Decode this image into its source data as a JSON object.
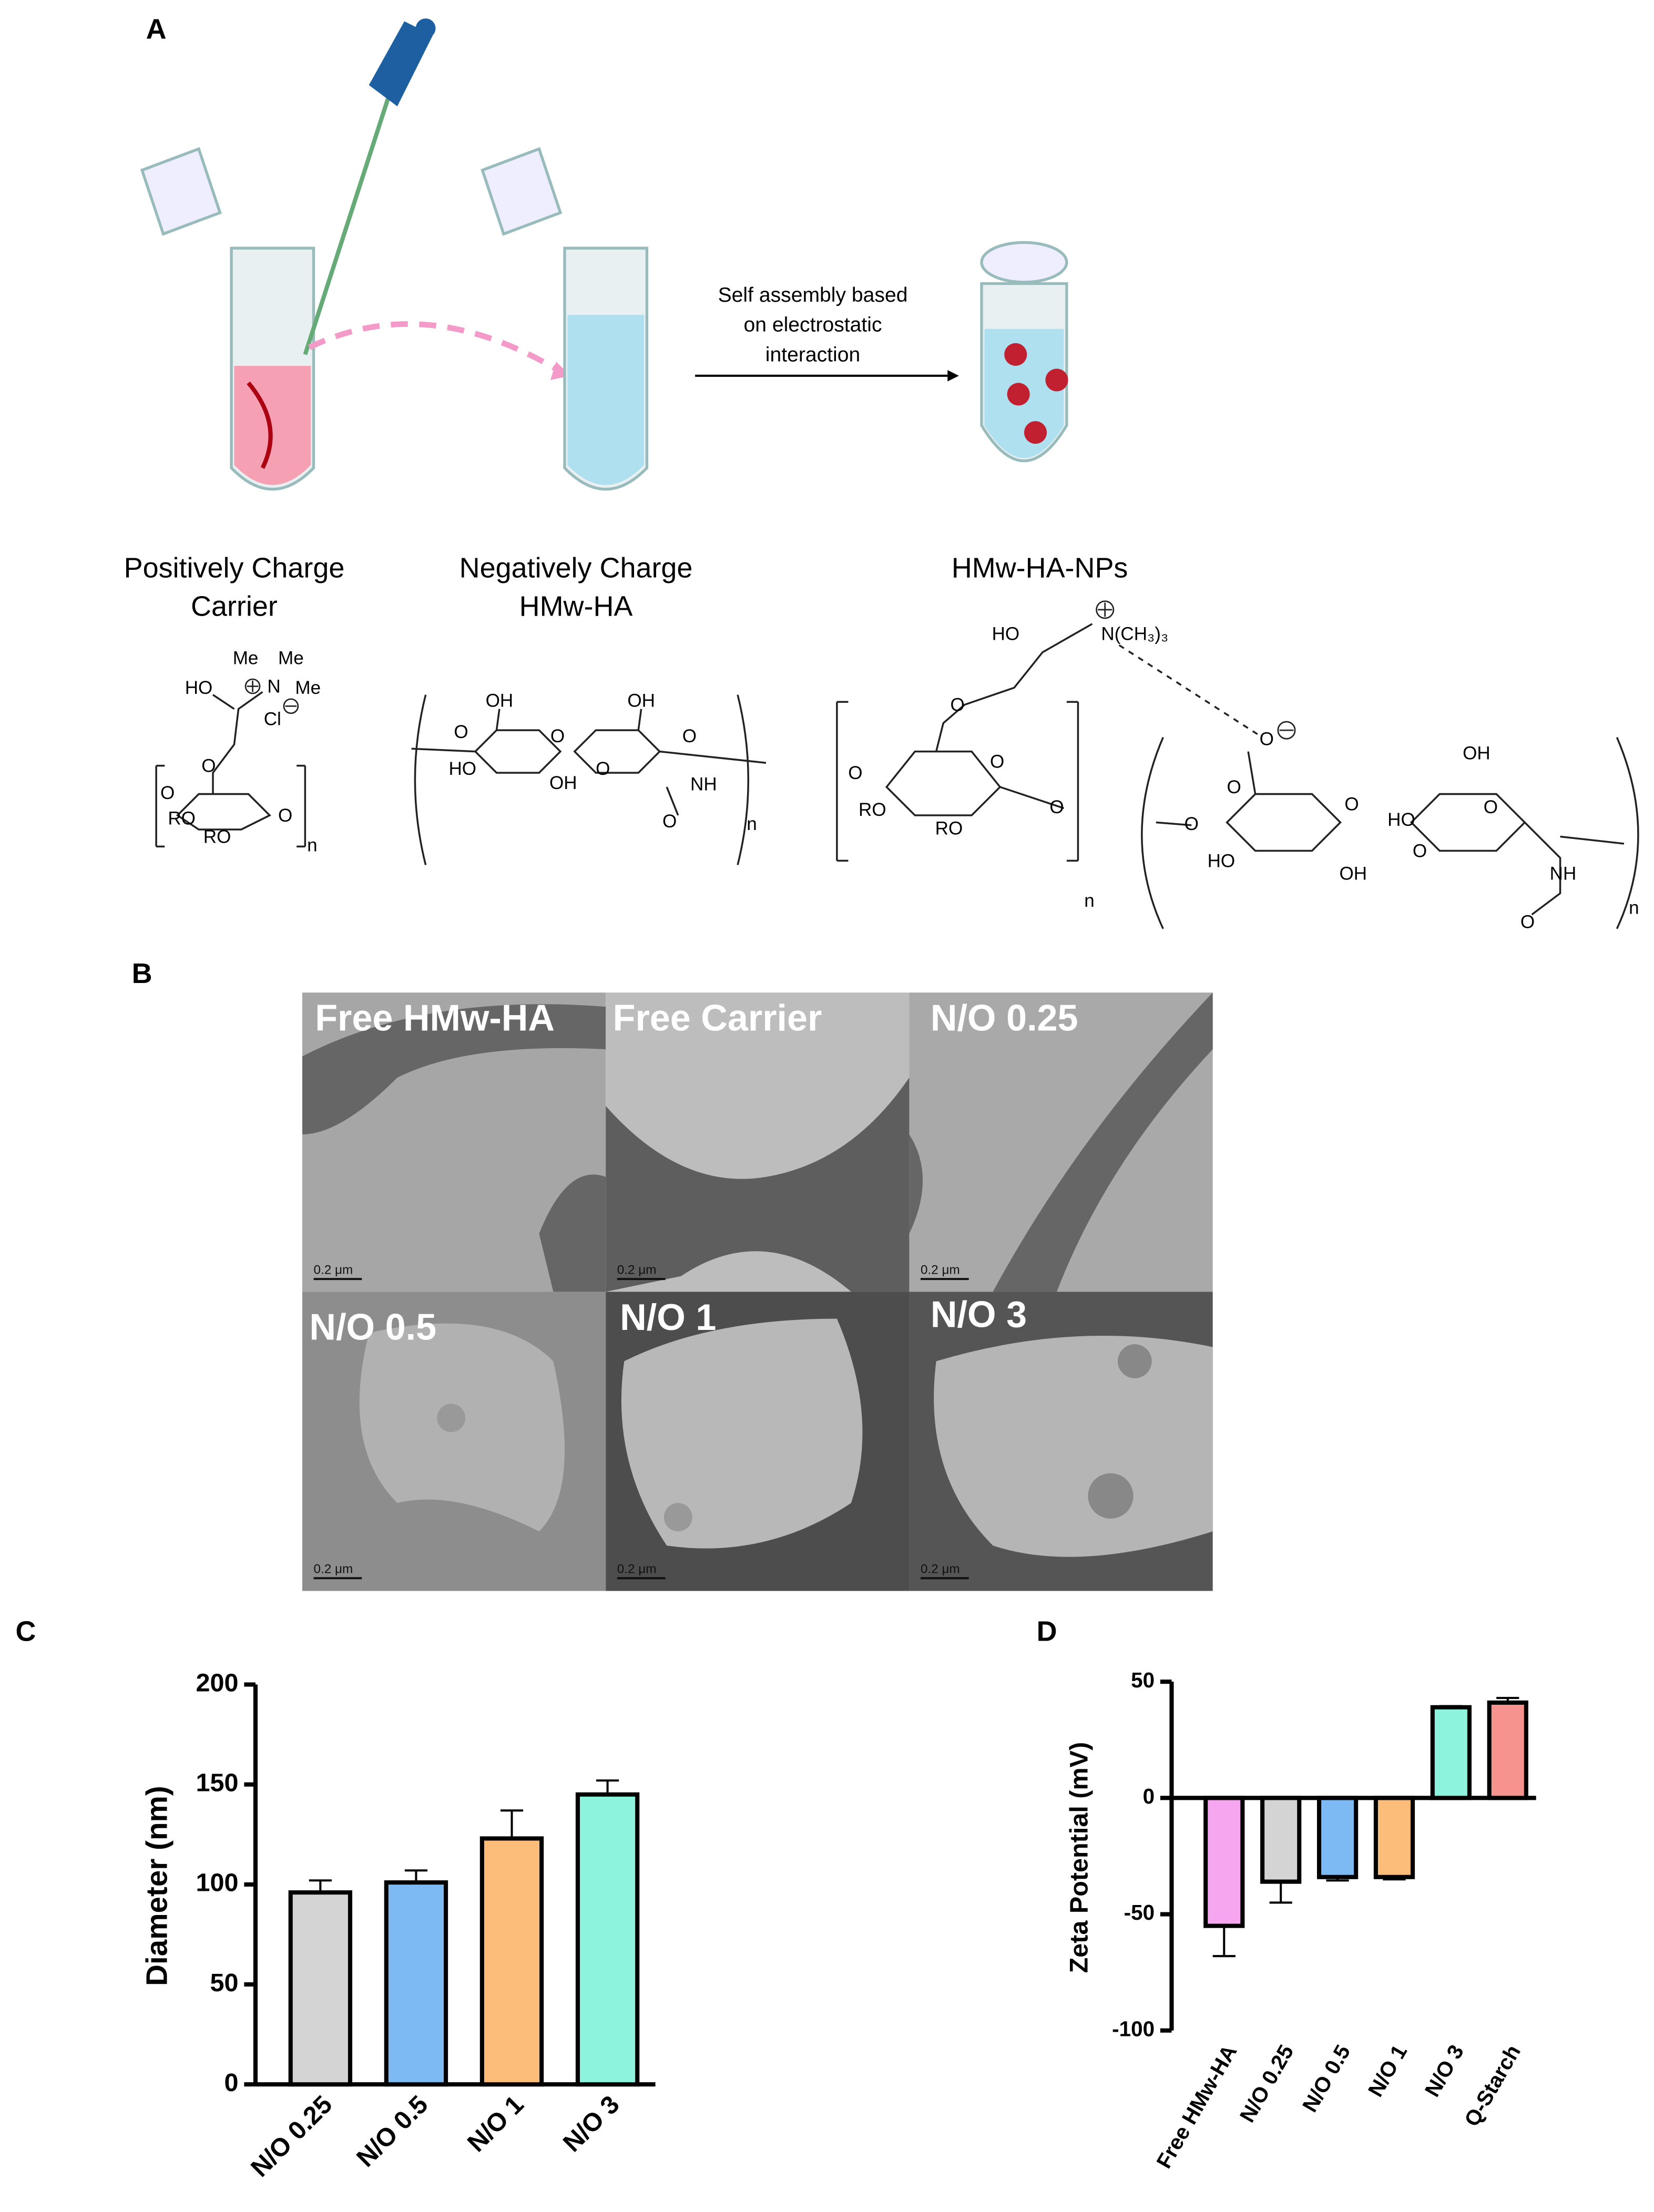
{
  "panels": {
    "labels": [
      "A",
      "B",
      "C",
      "D"
    ],
    "A": {
      "arrow_text": [
        "Self assembly based",
        "on electrostatic",
        "interaction"
      ],
      "carrier_title": [
        "Positively Charge",
        "Carrier"
      ],
      "ha_title": [
        "Negatively Charge",
        "HMw-HA"
      ],
      "np_title": "HMw-HA-NPs",
      "carrier_atoms": [
        "Me",
        "Me",
        "N",
        "Me",
        "HO",
        "Cl",
        "O",
        "O",
        "RO",
        "RO",
        "O",
        "n"
      ],
      "ha_atoms": [
        "OH",
        "OH",
        "O",
        "O",
        "O",
        "HO",
        "OH",
        "O",
        "NH",
        "O",
        "n"
      ],
      "np_atoms": [
        "HO",
        "N(CH₃)₃",
        "O",
        "O",
        "O",
        "RO",
        "RO",
        "O",
        "n",
        "O",
        "O",
        "O",
        "OH",
        "O",
        "HO",
        "O",
        "HO",
        "OH",
        "O",
        "NH",
        "O",
        "n"
      ]
    },
    "B": {
      "images": [
        "Free HMw-HA",
        "Free Carrier",
        "N/O 0.25",
        "N/O 0.5",
        "N/O 1",
        "N/O 3"
      ],
      "scale_bars": [
        "0.2 μm",
        "0.2 μm",
        "0.2 μm",
        "0.2 μm",
        "0.2 μm",
        "0.2 μm"
      ]
    }
  },
  "chart_data": [
    {
      "type": "bar",
      "y_label": "Diameter (nm)",
      "categories": [
        "N/O 0.25",
        "N/O 0.5",
        "N/O 1",
        "N/O 3"
      ],
      "values": [
        96,
        101,
        123,
        145
      ],
      "errors": [
        6,
        6,
        14,
        7
      ],
      "colors": [
        "#d4d4d4",
        "#7db9f3",
        "#fcbd7b",
        "#8df3dc"
      ],
      "ylim": [
        0,
        200
      ],
      "yticks": [
        0,
        50,
        100,
        150,
        200
      ]
    },
    {
      "type": "bar",
      "y_label": "Zeta Potential (mV)",
      "categories": [
        "Free HMw-HA",
        "N/O 0.25",
        "N/O 0.5",
        "N/O 1",
        "N/O 3",
        "Q-Starch"
      ],
      "values": [
        -55,
        -36,
        -34,
        -34,
        39,
        41
      ],
      "errors": [
        13,
        9,
        1.5,
        1,
        0.5,
        2
      ],
      "colors": [
        "#f6a6ef",
        "#d4d4d4",
        "#7db9f3",
        "#fcbd7b",
        "#8df3dc",
        "#f6938f"
      ],
      "ylim": [
        -100,
        50
      ],
      "yticks": [
        -100,
        -50,
        0,
        50
      ]
    }
  ]
}
